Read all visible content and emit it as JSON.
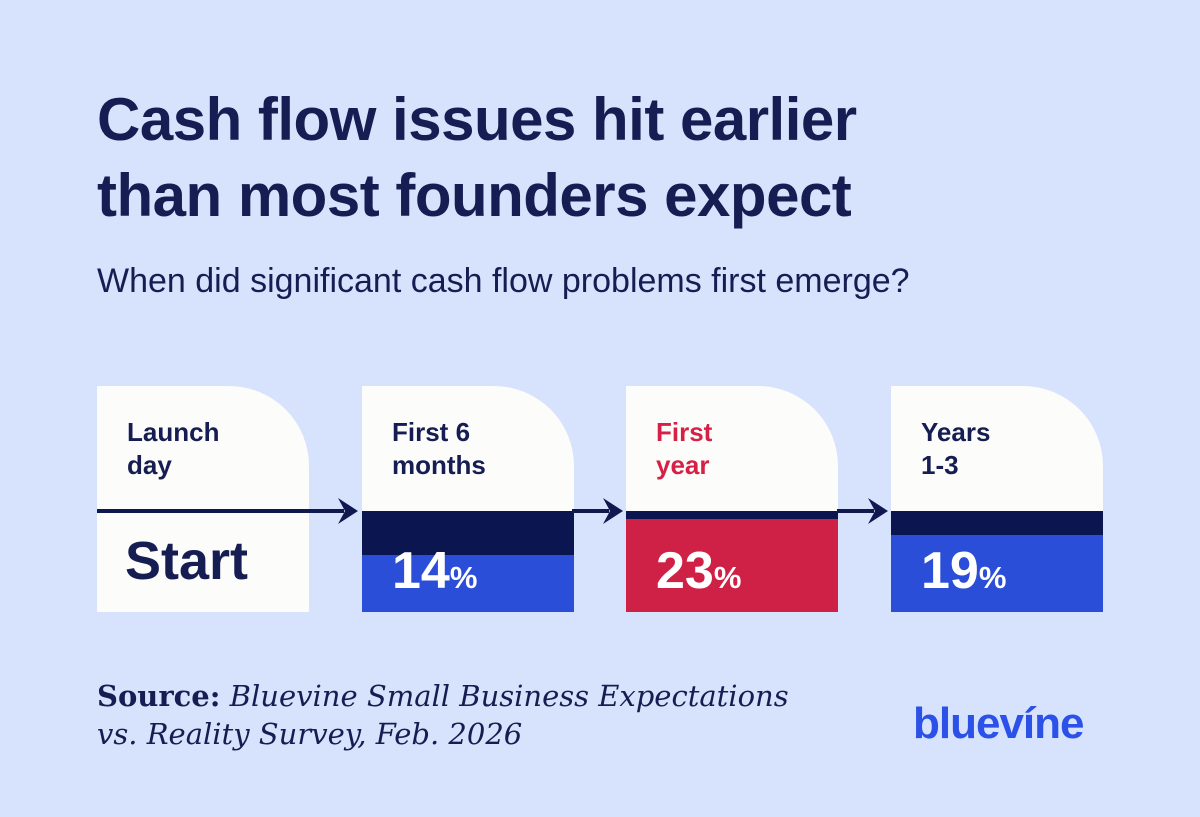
{
  "page": {
    "title_line1": "Cash flow issues hit earlier",
    "title_line2": "than most founders expect",
    "subtitle": "When did significant cash flow problems first emerge?",
    "logo_text": "bluevíne"
  },
  "ui": {
    "percent_sign": "%"
  },
  "source": {
    "label": "Source:",
    "line1_rest": " Bluevine Small Business Expectations",
    "line2": "vs. Reality Survey, Feb. 2026"
  },
  "colors": {
    "page_bg": "#D7E3FC",
    "card_white": "#FCFCFA",
    "title_navy": "#161D52",
    "band_navy": "#0B1550",
    "bar_blue": "#2B4ED8",
    "bar_red": "#CF2045",
    "label_red": "#D62046",
    "arrow_navy": "#10194F",
    "logo_blue": "#2B51E8",
    "text_white": "#FFFFFF"
  },
  "cards": [
    {
      "id": "launch-day",
      "label_line1": "Launch",
      "label_line2": "day",
      "value_display": "Start",
      "value_pct": null
    },
    {
      "id": "first-6-months",
      "label_line1": "First 6",
      "label_line2": "months",
      "value_display": "14",
      "value_pct": 14
    },
    {
      "id": "first-year",
      "label_line1": "First",
      "label_line2": "year",
      "value_display": "23",
      "value_pct": 23
    },
    {
      "id": "years-1-3",
      "label_line1": "Years",
      "label_line2": "1-3",
      "value_display": "19",
      "value_pct": 19
    }
  ],
  "chart_data": {
    "type": "bar",
    "title": "Cash flow issues hit earlier than most founders expect",
    "question": "When did significant cash flow problems first emerge?",
    "categories": [
      "Launch day",
      "First 6 months",
      "First year",
      "Years 1-3"
    ],
    "values": [
      null,
      14,
      23,
      19
    ],
    "value_labels": [
      "Start",
      "14%",
      "23%",
      "19%"
    ],
    "unit": "%",
    "ylim": [
      0,
      25
    ],
    "highlighted_category": "First year",
    "legend": "none",
    "grid": false,
    "source": "Bluevine Small Business Expectations vs. Reality Survey, Feb. 2026",
    "brand": "bluevine"
  }
}
